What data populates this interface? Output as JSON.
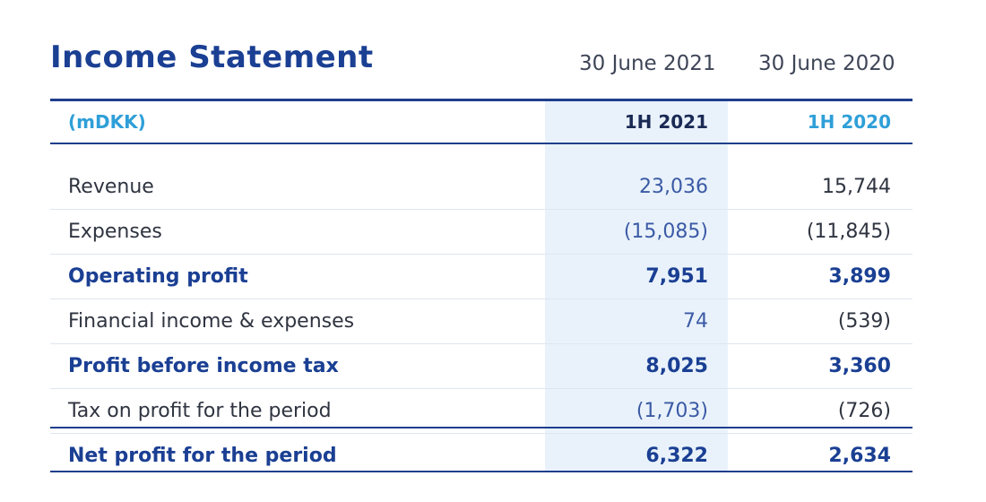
{
  "title": "Income Statement",
  "header_dates": [
    "30 June 2021",
    "30 June 2020"
  ],
  "table": {
    "unit_label": "(mDKK)",
    "columns": [
      "1H 2021",
      "1H 2020"
    ],
    "rows": [
      {
        "label": "Revenue",
        "v1": "23,036",
        "v2": "15,744",
        "bold": false
      },
      {
        "label": "Expenses",
        "v1": "(15,085)",
        "v2": "(11,845)",
        "bold": false
      },
      {
        "label": "Operating profit",
        "v1": "7,951",
        "v2": "3,899",
        "bold": true
      },
      {
        "label": "Financial income & expenses",
        "v1": "74",
        "v2": "(539)",
        "bold": false
      },
      {
        "label": "Profit before income tax",
        "v1": "8,025",
        "v2": "3,360",
        "bold": true
      },
      {
        "label": "Tax on profit for the period",
        "v1": "(1,703)",
        "v2": "(726)",
        "bold": false
      },
      {
        "label": "Net profit for the period",
        "v1": "6,322",
        "v2": "2,634",
        "bold": true
      }
    ]
  },
  "colors": {
    "brand_navy": "#1a3f93",
    "accent_blue": "#2f9fd8",
    "column_shade": "#e9f2fb",
    "rule": "#1f3e8c"
  }
}
